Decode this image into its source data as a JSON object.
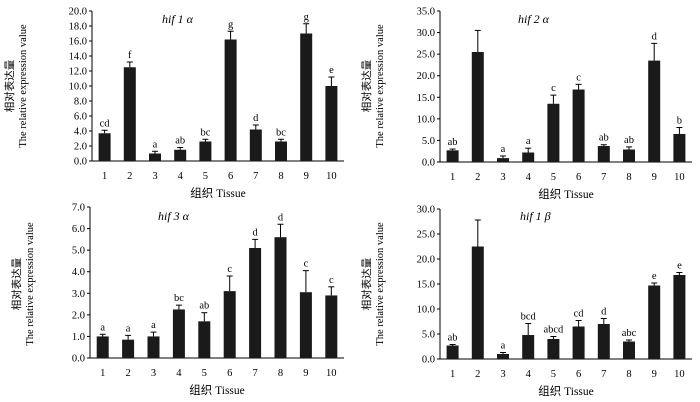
{
  "figure": {
    "y_axis_label_cn": "相对表达量",
    "y_axis_label_en": "The relative expression value",
    "x_axis_label": "组织 Tissue"
  },
  "chart_data": [
    {
      "type": "bar",
      "title": "hif 1 α",
      "xlabel": "组织 Tissue",
      "ylabel": "相对表达量 The relative expression value",
      "categories": [
        "1",
        "2",
        "3",
        "4",
        "5",
        "6",
        "7",
        "8",
        "9",
        "10"
      ],
      "values": [
        3.7,
        12.5,
        1.0,
        1.5,
        2.6,
        16.2,
        4.2,
        2.6,
        17.0,
        10.0
      ],
      "errors": [
        0.4,
        0.7,
        0.3,
        0.3,
        0.3,
        1.1,
        0.6,
        0.3,
        1.3,
        1.2
      ],
      "letters": [
        "cd",
        "f",
        "a",
        "ab",
        "bc",
        "g",
        "d",
        "bc",
        "g",
        "e"
      ],
      "ylim": [
        0,
        20
      ],
      "yticks": [
        "0.0",
        "2.0",
        "4.0",
        "6.0",
        "8.0",
        "10.0",
        "12.0",
        "14.0",
        "16.0",
        "18.0",
        "20.0"
      ]
    },
    {
      "type": "bar",
      "title": "hif 2 α",
      "xlabel": "组织 Tissue",
      "ylabel": "相对表达量 The relative expression value",
      "categories": [
        "1",
        "2",
        "3",
        "4",
        "5",
        "6",
        "7",
        "8",
        "9",
        "10"
      ],
      "values": [
        2.7,
        25.5,
        0.9,
        2.2,
        13.5,
        16.8,
        3.7,
        2.9,
        23.5,
        6.5
      ],
      "errors": [
        0.3,
        5.0,
        0.5,
        1.0,
        2.0,
        1.2,
        0.3,
        0.6,
        4.0,
        1.5
      ],
      "letters": [
        "ab",
        "",
        "a",
        "a",
        "c",
        "c",
        "ab",
        "ab",
        "d",
        "b"
      ],
      "ylim": [
        0,
        35
      ],
      "yticks": [
        "0.0",
        "5.0",
        "10.0",
        "15.0",
        "20.0",
        "25.0",
        "30.0",
        "35.0"
      ]
    },
    {
      "type": "bar",
      "title": "hif 3 α",
      "xlabel": "组织 Tissue",
      "ylabel": "相对表达量 The relative expression value",
      "categories": [
        "1",
        "2",
        "3",
        "4",
        "5",
        "6",
        "7",
        "8",
        "9",
        "10"
      ],
      "values": [
        1.0,
        0.85,
        1.0,
        2.25,
        1.7,
        3.1,
        5.1,
        5.6,
        3.05,
        2.9
      ],
      "errors": [
        0.1,
        0.2,
        0.2,
        0.2,
        0.4,
        0.7,
        0.4,
        0.6,
        1.0,
        0.4
      ],
      "letters": [
        "a",
        "a",
        "a",
        "bc",
        "ab",
        "c",
        "d",
        "d",
        "c",
        "c"
      ],
      "ylim": [
        0,
        7
      ],
      "yticks": [
        "0.0",
        "1.0",
        "2.0",
        "3.0",
        "4.0",
        "5.0",
        "6.0",
        "7.0"
      ]
    },
    {
      "type": "bar",
      "title": "hif 1 β",
      "xlabel": "组织 Tissue",
      "ylabel": "相对表达量 The relative expression value",
      "categories": [
        "1",
        "2",
        "3",
        "4",
        "5",
        "6",
        "7",
        "8",
        "9",
        "10"
      ],
      "values": [
        2.7,
        22.5,
        1.0,
        4.8,
        4.0,
        6.5,
        7.0,
        3.5,
        14.7,
        16.8
      ],
      "errors": [
        0.2,
        5.3,
        0.3,
        2.3,
        0.5,
        1.2,
        1.1,
        0.3,
        0.5,
        0.5
      ],
      "letters": [
        "ab",
        "",
        "a",
        "bcd",
        "abcd",
        "cd",
        "d",
        "abc",
        "e",
        "e"
      ],
      "ylim": [
        0,
        30
      ],
      "yticks": [
        "0.0",
        "5.0",
        "10.0",
        "15.0",
        "20.0",
        "25.0",
        "30.0"
      ]
    }
  ]
}
